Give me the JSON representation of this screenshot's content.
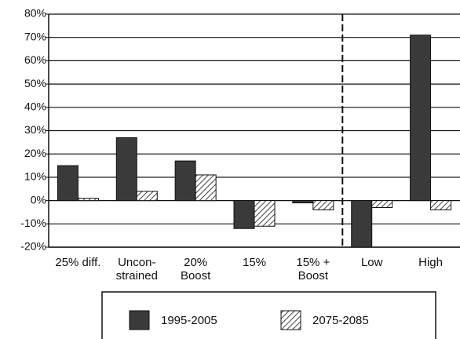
{
  "chart_data": {
    "type": "bar",
    "categories": [
      "25% diff.",
      "Uncon-\nstrained",
      "20%\nBoost",
      "15%",
      "15% +\nBoost",
      "Low",
      "High"
    ],
    "series": [
      {
        "name": "1995-2005",
        "color": "#3a3a3a",
        "values": [
          15,
          27,
          17,
          -12,
          -1,
          -20,
          71
        ]
      },
      {
        "name": "2075-2085",
        "color": "#ffffff",
        "hatch": true,
        "values": [
          1,
          4,
          11,
          -11,
          -4,
          -3,
          -4
        ]
      }
    ],
    "ylim": [
      -20,
      80
    ],
    "yticks": [
      {
        "value": -20,
        "label": "-20%"
      },
      {
        "value": -10,
        "label": "-10%"
      },
      {
        "value": 0,
        "label": "0%"
      },
      {
        "value": 10,
        "label": "10%"
      },
      {
        "value": 20,
        "label": "20%"
      },
      {
        "value": 30,
        "label": "30%"
      },
      {
        "value": 40,
        "label": "40%"
      },
      {
        "value": 50,
        "label": "50%"
      },
      {
        "value": 60,
        "label": "60%"
      },
      {
        "value": 70,
        "label": "70%"
      },
      {
        "value": 80,
        "label": "80%"
      }
    ],
    "grid": true
  }
}
